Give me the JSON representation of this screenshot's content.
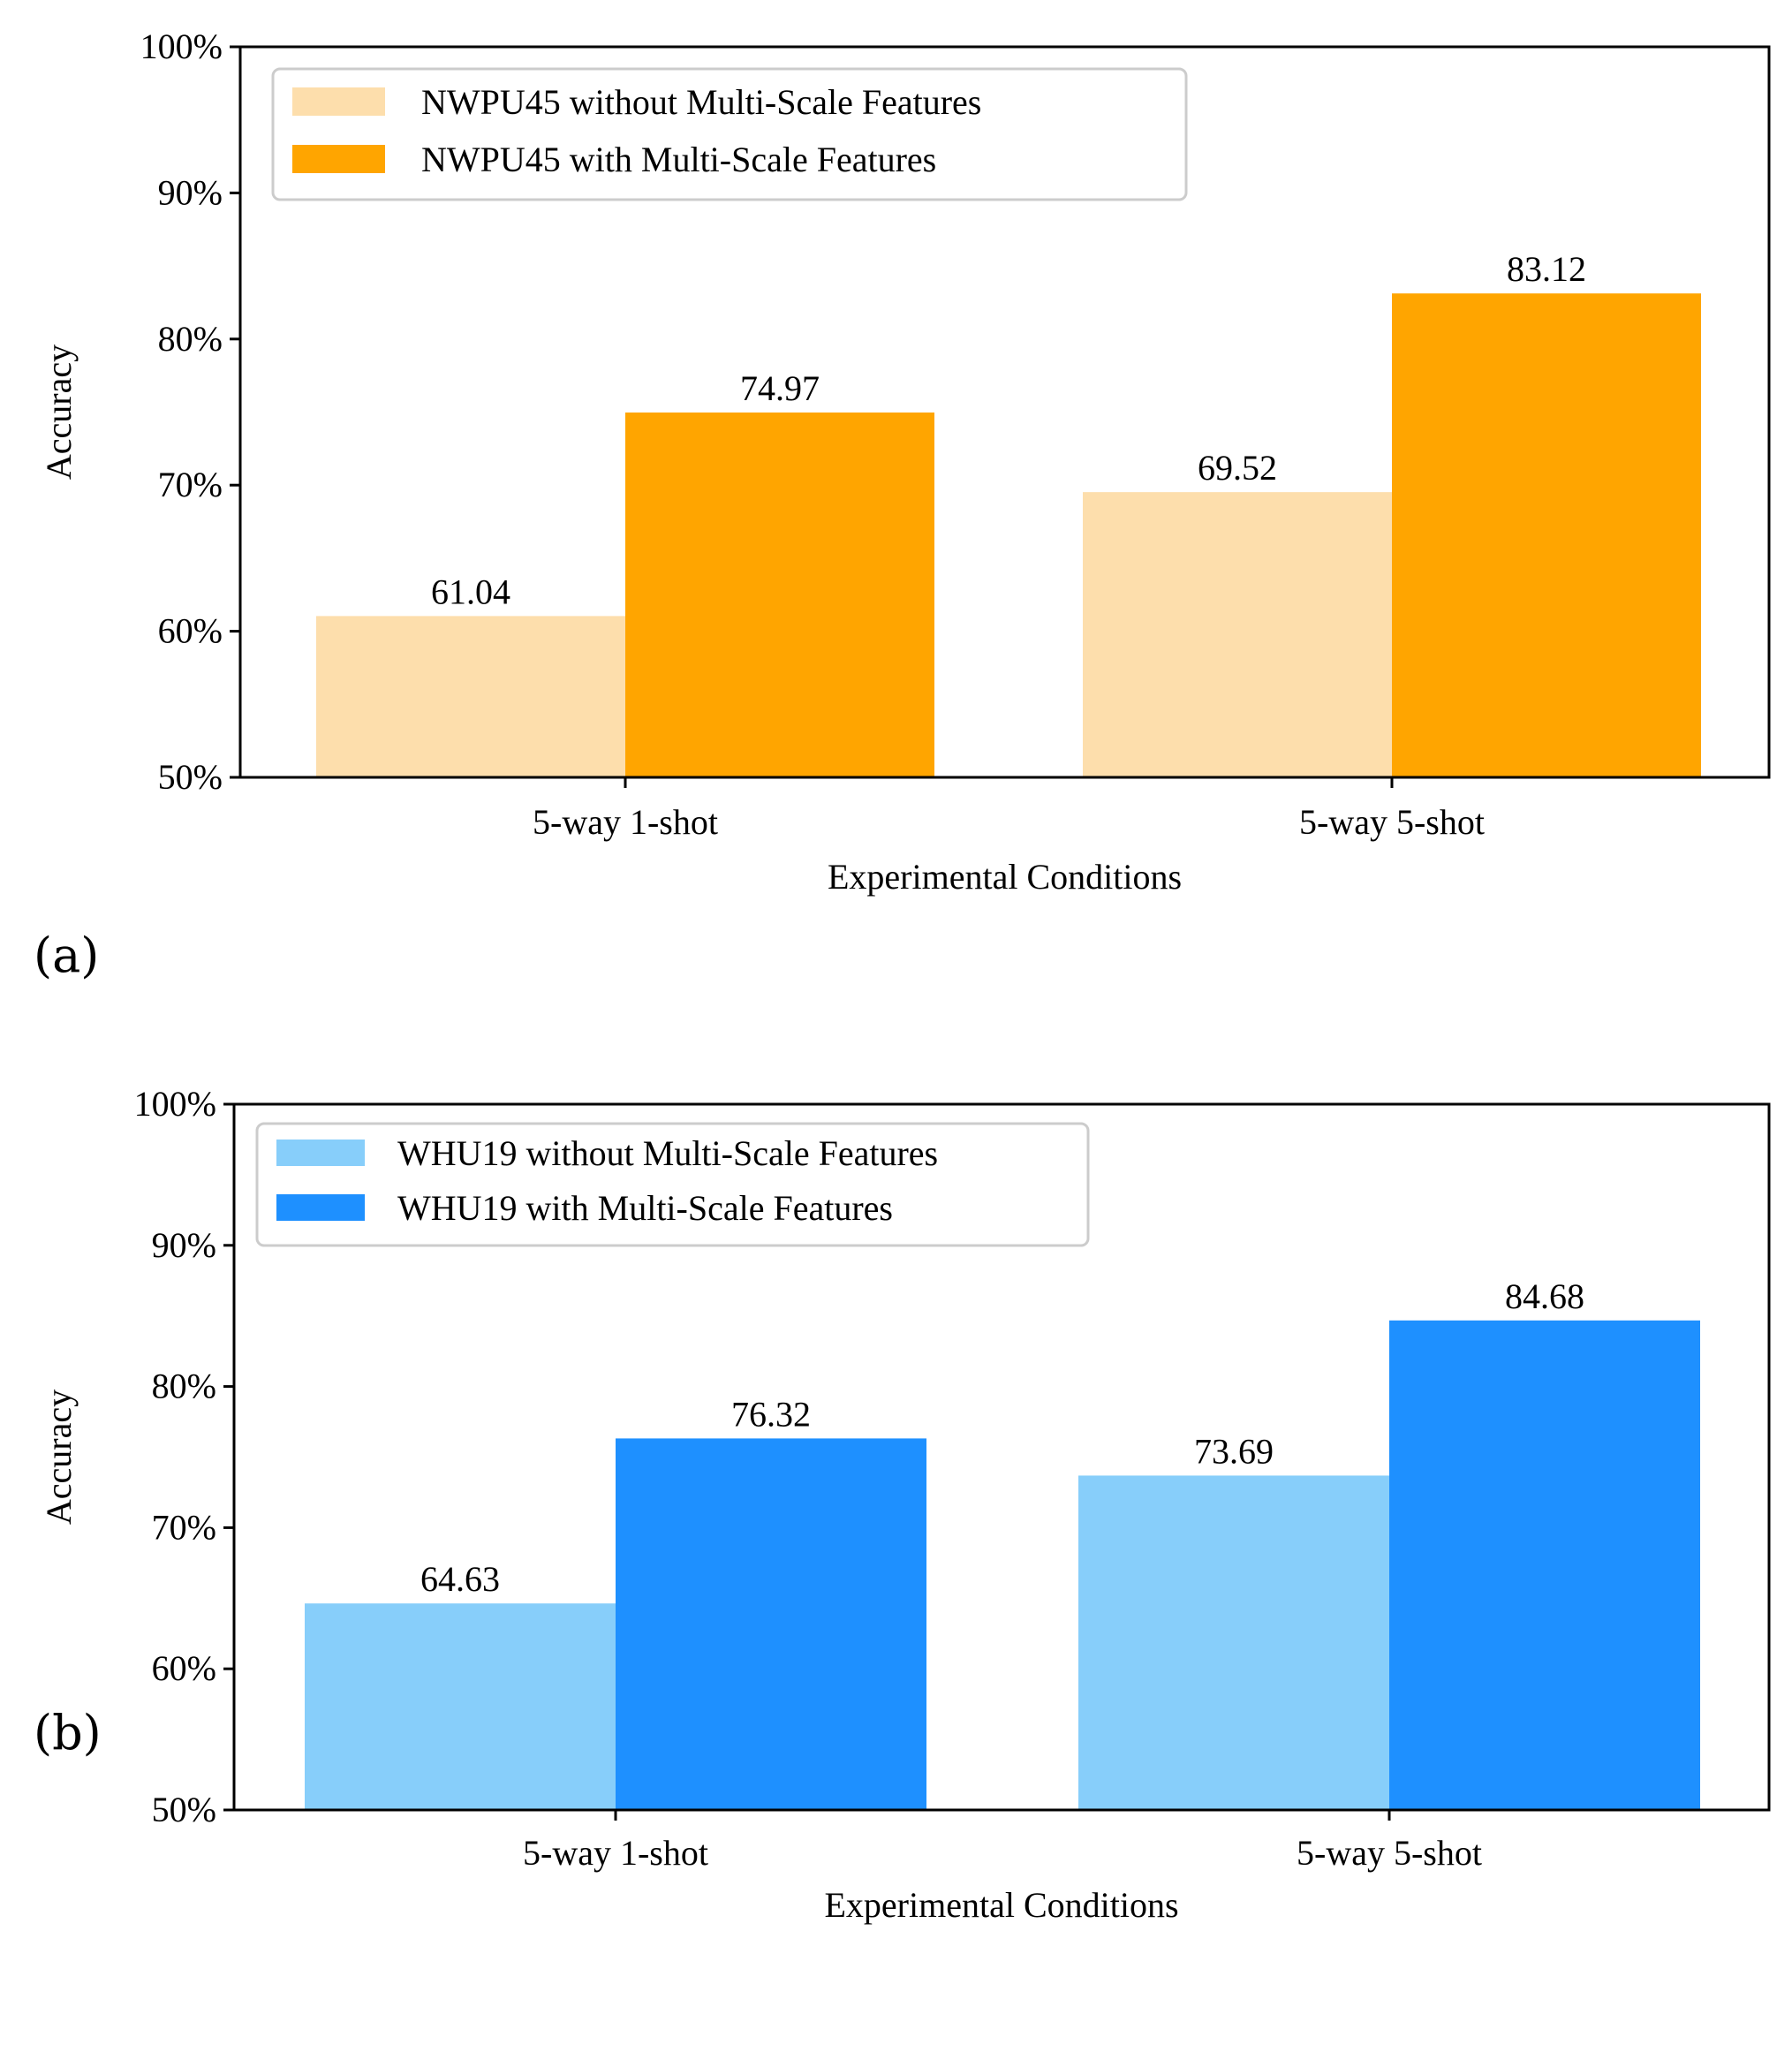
{
  "panels": [
    {
      "label": "(a)"
    },
    {
      "label": "(b)"
    }
  ],
  "chart_data": [
    {
      "type": "bar",
      "title": "",
      "xlabel": "Experimental Conditions",
      "ylabel": "Accuracy",
      "ylim": [
        50,
        100
      ],
      "yticks": [
        "50%",
        "60%",
        "70%",
        "80%",
        "90%",
        "100%"
      ],
      "ytick_values": [
        50,
        60,
        70,
        80,
        90,
        100
      ],
      "categories": [
        "5-way 1-shot",
        "5-way 5-shot"
      ],
      "legend_position": "top-left",
      "series": [
        {
          "name": "NWPU45 without Multi-Scale Features",
          "color": "#fddeac",
          "values": [
            61.04,
            69.52
          ],
          "labels": [
            "61.04",
            "69.52"
          ]
        },
        {
          "name": "NWPU45 with Multi-Scale Features",
          "color": "#ffa500",
          "values": [
            74.97,
            83.12
          ],
          "labels": [
            "74.97",
            "83.12"
          ]
        }
      ]
    },
    {
      "type": "bar",
      "title": "",
      "xlabel": "Experimental Conditions",
      "ylabel": "Accuracy",
      "ylim": [
        50,
        100
      ],
      "yticks": [
        "50%",
        "60%",
        "70%",
        "80%",
        "90%",
        "100%"
      ],
      "ytick_values": [
        50,
        60,
        70,
        80,
        90,
        100
      ],
      "categories": [
        "5-way 1-shot",
        "5-way 5-shot"
      ],
      "legend_position": "top-left",
      "series": [
        {
          "name": "WHU19 without Multi-Scale Features",
          "color": "#87cefa",
          "values": [
            64.63,
            73.69
          ],
          "labels": [
            "64.63",
            "73.69"
          ]
        },
        {
          "name": "WHU19 with Multi-Scale Features",
          "color": "#1e90ff",
          "values": [
            76.32,
            84.68
          ],
          "labels": [
            "76.32",
            "84.68"
          ]
        }
      ]
    }
  ]
}
